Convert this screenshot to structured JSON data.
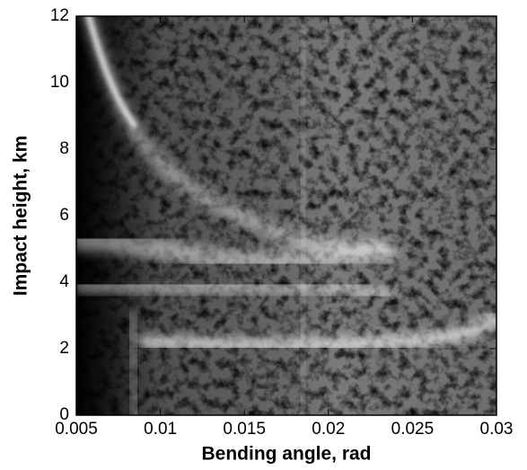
{
  "chart_data": {
    "type": "image",
    "xlabel": "Bending angle, rad",
    "ylabel": "Impact height, km",
    "xlim": [
      0.005,
      0.03
    ],
    "xticks": [
      0.005,
      0.01,
      0.015,
      0.02,
      0.025,
      0.03
    ],
    "ylim": [
      0,
      12
    ],
    "yticks": [
      0,
      2,
      4,
      6,
      8,
      10,
      12
    ],
    "grid": false
  }
}
